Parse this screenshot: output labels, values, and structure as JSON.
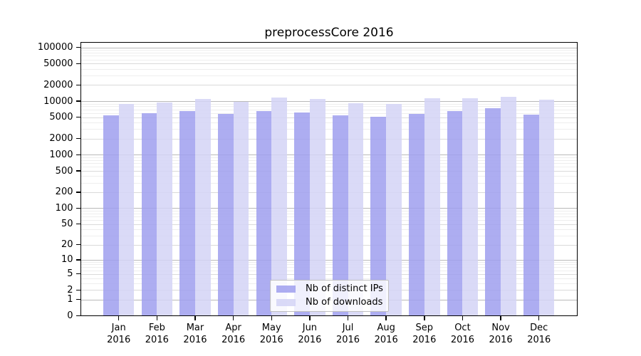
{
  "chart_data": {
    "type": "bar",
    "title": "preprocessCore 2016",
    "year_label": "2016",
    "categories": [
      "Jan",
      "Feb",
      "Mar",
      "Apr",
      "May",
      "Jun",
      "Jul",
      "Aug",
      "Sep",
      "Oct",
      "Nov",
      "Dec"
    ],
    "series": [
      {
        "name": "Nb of distinct IPs",
        "color": "#9f9fee",
        "values": [
          5400,
          5900,
          6500,
          5800,
          6600,
          6100,
          5400,
          5100,
          5800,
          6600,
          7300,
          5600
        ]
      },
      {
        "name": "Nb of downloads",
        "color": "#d4d4f6",
        "values": [
          8900,
          9300,
          10900,
          9700,
          11600,
          10900,
          9200,
          8900,
          11400,
          11200,
          12000,
          10600
        ]
      }
    ],
    "y_axis": {
      "scale": "log10(1+value)",
      "ticks": [
        0,
        1,
        2,
        5,
        10,
        20,
        50,
        100,
        200,
        500,
        1000,
        2000,
        5000,
        10000,
        20000,
        50000,
        100000
      ],
      "max_tick": 100000
    },
    "grid": {
      "major_color": "#b9b9b9",
      "mid_color": "#dadada",
      "minor_color": "#eeeeee"
    },
    "legend": {
      "position": "bottom-center-inside"
    },
    "colors": {
      "axis": "#000000",
      "background": "#ffffff",
      "text": "#000000"
    }
  }
}
